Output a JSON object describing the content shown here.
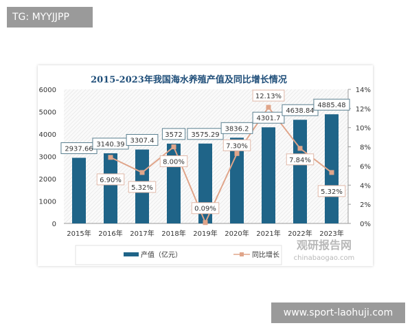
{
  "overlay": {
    "tag": "TG: MYYJJPP",
    "site": "www.sport-laohuji.com"
  },
  "watermark": {
    "name": "观研报告网",
    "url": "chinabaogao.com"
  },
  "chart_data": {
    "type": "bar+line",
    "title": "2015-2023年我国海水养殖产值及同比增长情况",
    "categories": [
      "2015年",
      "2016年",
      "2017年",
      "2018年",
      "2019年",
      "2020年",
      "2021年",
      "2022年",
      "2023年"
    ],
    "series": [
      {
        "name": "产值（亿元）",
        "type": "bar",
        "axis": "left",
        "color": "#1f6488",
        "values": [
          2937.66,
          3140.39,
          3307.4,
          3572,
          3575.29,
          3836.2,
          4301.7,
          4638.84,
          4885.48
        ],
        "labels": [
          "2937.66",
          "3140.39",
          "3307.4",
          "3572",
          "3575.29",
          "3836.2",
          "4301.7",
          "4638.84",
          "4885.48"
        ]
      },
      {
        "name": "同比增长",
        "type": "line",
        "axis": "right",
        "color": "#e0a58a",
        "values": [
          null,
          6.9,
          5.32,
          8.0,
          0.09,
          7.3,
          12.13,
          7.84,
          5.32
        ],
        "labels": [
          "",
          "6.90%",
          "5.32%",
          "8.00%",
          "0.09%",
          "7.30%",
          "12.13%",
          "7.84%",
          "5.32%"
        ]
      }
    ],
    "y_left": {
      "range": [
        0,
        6000
      ],
      "ticks": [
        "0",
        "1000",
        "2000",
        "3000",
        "4000",
        "5000",
        "6000"
      ]
    },
    "y_right": {
      "range": [
        0,
        14
      ],
      "unit": "%",
      "ticks": [
        "0%",
        "2%",
        "4%",
        "6%",
        "8%",
        "10%",
        "12%",
        "14%"
      ]
    },
    "legend": "bottom",
    "grid": false
  }
}
